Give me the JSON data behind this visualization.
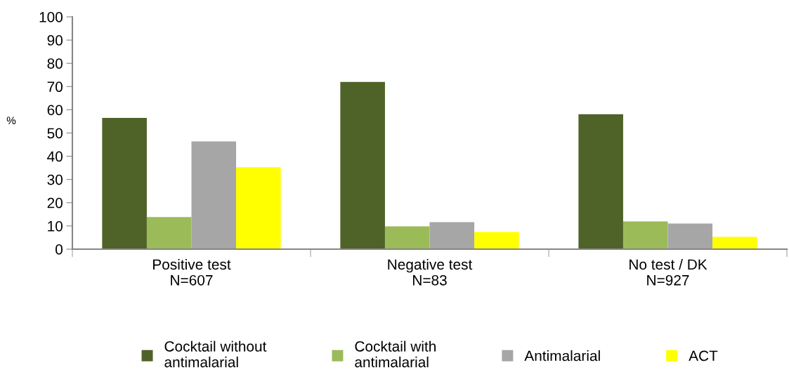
{
  "chart_data": {
    "type": "bar",
    "ylabel": "%",
    "categories": [
      "Positive test\nN=607",
      "Negative test\nN=83",
      "No test / DK\nN=927"
    ],
    "series": [
      {
        "name": "Cocktail without\nantimalarial",
        "color": "#4f6228",
        "values": [
          56.5,
          72.0,
          58.1
        ]
      },
      {
        "name": "Cocktail with\nantimalarial",
        "color": "#9bbb59",
        "values": [
          13.8,
          9.8,
          11.9
        ]
      },
      {
        "name": "Antimalarial",
        "color": "#a6a6a6",
        "values": [
          46.4,
          11.6,
          11.0
        ]
      },
      {
        "name": "ACT",
        "color": "#ffff00",
        "values": [
          35.3,
          7.4,
          5.3
        ]
      }
    ],
    "ylim": [
      0,
      100
    ],
    "yticks": [
      0,
      10,
      20,
      30,
      40,
      50,
      60,
      70,
      80,
      90,
      100
    ],
    "grid": false,
    "legend": "bottom"
  }
}
